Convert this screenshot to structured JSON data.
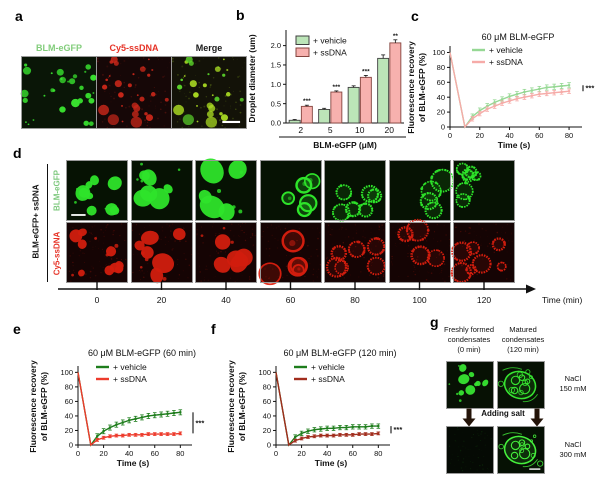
{
  "figure": {
    "panel_labels": {
      "a": "a",
      "b": "b",
      "c": "c",
      "d": "d",
      "e": "e",
      "f": "f",
      "g": "g"
    }
  },
  "panel_a": {
    "captions": [
      {
        "text": "BLM-eGFP",
        "color": "#82cd7b"
      },
      {
        "text": "Cy5-ssDNA",
        "color": "#e63226"
      },
      {
        "text": "Merge",
        "color": "#1a1a1a"
      }
    ]
  },
  "panel_d": {
    "group_label": "BLM-eGFP+ ssDNA",
    "row_labels": [
      {
        "text": "BLM-eGFP",
        "color": "#7dc87d"
      },
      {
        "text": "Cy5-ssDNA",
        "color": "#e63226"
      }
    ],
    "time_axis": {
      "ticks": [
        "0",
        "20",
        "40",
        "60",
        "80",
        "100",
        "120"
      ],
      "label": "Time (min)"
    }
  },
  "panel_g": {
    "col_headers": [
      [
        "Freshly formed",
        "condensates",
        "(0 min)"
      ],
      [
        "Matured",
        "condensates",
        "(120 min)"
      ]
    ],
    "arrow_label": "Adding salt",
    "row_labels": [
      [
        "NaCl",
        "150 mM"
      ],
      [
        "NaCl",
        "300 mM"
      ]
    ]
  },
  "chart_data": [
    {
      "panel": "b",
      "type": "bar",
      "title": "",
      "ylabel": "Droplet diameter (um)",
      "xlabel": "BLM-eGFP (μM)",
      "categories": [
        "2",
        "5",
        "10",
        "20"
      ],
      "yticks": [
        0,
        0.5,
        1,
        1.5,
        2
      ],
      "ytick_labels": [
        "0.0",
        "0.5",
        "1.0",
        "1.5",
        "2.0"
      ],
      "ylim": [
        0,
        2.3
      ],
      "grid": false,
      "legend_pos": "top-left",
      "series": [
        {
          "name": "+ vehicle",
          "fill": "#bce5b8",
          "edge": "#3f3f3f",
          "values": [
            0.07,
            0.35,
            0.92,
            1.67
          ],
          "errors": [
            0.02,
            0.03,
            0.04,
            0.09
          ]
        },
        {
          "name": "+ ssDNA",
          "fill": "#f7b1ae",
          "edge": "#84443e",
          "values": [
            0.43,
            0.8,
            1.18,
            2.07
          ],
          "errors": [
            0.03,
            0.03,
            0.05,
            0.08
          ]
        }
      ],
      "significance": [
        "***",
        "***",
        "***",
        "**"
      ]
    },
    {
      "panel": "c",
      "type": "line",
      "title": "60 μM BLM-eGFP",
      "ylabel_lines": [
        "Fluorescence recovery",
        "of BLM-eGFP (%)"
      ],
      "xlabel": "Time (s)",
      "xticks": [
        0,
        20,
        40,
        60,
        80
      ],
      "yticks": [
        0,
        20,
        40,
        60,
        80,
        100
      ],
      "xlim": [
        0,
        86
      ],
      "ylim": [
        0,
        106
      ],
      "grid": false,
      "legend_pos": "top-left",
      "significance": "***",
      "x": [
        0,
        10,
        15,
        20,
        25,
        30,
        35,
        40,
        45,
        50,
        55,
        60,
        65,
        70,
        75,
        80
      ],
      "series": [
        {
          "name": "+ vehicle",
          "color": "#96d894",
          "y": [
            100,
            0,
            14,
            22,
            28,
            33,
            37,
            41,
            44,
            47,
            49,
            51,
            53,
            54,
            55,
            56
          ],
          "err": 3.5
        },
        {
          "name": "+ ssDNA",
          "color": "#f6aba8",
          "y": [
            100,
            0,
            11,
            18,
            24,
            28,
            32,
            35,
            38,
            40,
            42,
            44,
            45,
            46,
            47,
            48
          ],
          "err": 3
        }
      ]
    },
    {
      "panel": "e",
      "type": "line",
      "title": "60 μM BLM-eGFP (60 min)",
      "ylabel_lines": [
        "Fluorescence recovery",
        "of BLM-eGFP (%)"
      ],
      "xlabel": "Time (s)",
      "xticks": [
        0,
        20,
        40,
        60,
        80
      ],
      "yticks": [
        0,
        20,
        40,
        60,
        80,
        100
      ],
      "xlim": [
        0,
        86
      ],
      "ylim": [
        0,
        106
      ],
      "grid": false,
      "legend_pos": "top-left",
      "significance": "***",
      "x": [
        0,
        10,
        15,
        20,
        25,
        30,
        35,
        40,
        45,
        50,
        55,
        60,
        65,
        70,
        75,
        80
      ],
      "series": [
        {
          "name": "+ vehicle",
          "color": "#1e7d1c",
          "y": [
            100,
            0,
            12,
            19,
            24,
            28,
            31,
            34,
            36,
            38,
            40,
            41,
            42,
            43,
            44,
            45
          ],
          "err": 3.5
        },
        {
          "name": "+ ssDNA",
          "color": "#ed3b2c",
          "y": [
            100,
            0,
            7,
            10,
            12,
            13,
            13,
            14,
            14,
            14,
            15,
            15,
            15,
            15,
            15,
            16
          ],
          "err": 2
        }
      ]
    },
    {
      "panel": "f",
      "type": "line",
      "title": "60 μM BLM-eGFP (120 min)",
      "ylabel_lines": [
        "Fluorescence recovery",
        "of BLM-eGFP (%)"
      ],
      "xlabel": "Time (s)",
      "xticks": [
        0,
        20,
        40,
        60,
        80
      ],
      "yticks": [
        0,
        20,
        40,
        60,
        80,
        100
      ],
      "xlim": [
        0,
        86
      ],
      "ylim": [
        0,
        106
      ],
      "grid": false,
      "legend_pos": "top-left",
      "significance": "***",
      "x": [
        0,
        10,
        15,
        20,
        25,
        30,
        35,
        40,
        45,
        50,
        55,
        60,
        65,
        70,
        75,
        80
      ],
      "series": [
        {
          "name": "+ vehicle",
          "color": "#1e7d1c",
          "y": [
            100,
            0,
            11,
            16,
            19,
            21,
            22,
            23,
            23,
            24,
            24,
            25,
            25,
            25,
            26,
            26
          ],
          "err": 3
        },
        {
          "name": "+ ssDNA",
          "color": "#a12d1d",
          "y": [
            100,
            0,
            6,
            9,
            11,
            12,
            13,
            13,
            13,
            14,
            14,
            14,
            15,
            15,
            15,
            16
          ],
          "err": 2
        }
      ]
    }
  ],
  "micrographs": {
    "a_green": {
      "style": "dots",
      "color": "#38df2e",
      "bg": "#0a1607",
      "seed": 7
    },
    "a_red": {
      "style": "dots",
      "color": "#df2b1c",
      "bg": "#160707",
      "seed": 7,
      "noise": true,
      "dim": 0.88
    },
    "a_merge": {
      "style": "dots",
      "color": "#a8d822",
      "color2": "#5ad22a",
      "bg": "#131208",
      "seed": 7,
      "noise": true,
      "scalebar": "br"
    },
    "d0_g": {
      "style": "blobs",
      "n": 9,
      "rmin": 5,
      "rmax": 13,
      "color": "#2ee42a",
      "bg": "#061203",
      "seed": 21,
      "scalebar": "bl"
    },
    "d1_g": {
      "style": "blobs",
      "n": 6,
      "rmin": 8,
      "rmax": 18,
      "color": "#2ee42a",
      "bg": "#061203",
      "seed": 22
    },
    "d2_g": {
      "style": "blobs",
      "n": 5,
      "rmin": 11,
      "rmax": 22,
      "color": "#2ee42a",
      "bg": "#061203",
      "seed": 23
    },
    "d3_g": {
      "style": "rings",
      "n": 5,
      "rmin": 9,
      "rmax": 19,
      "color": "#2ee42a",
      "bg": "#061203",
      "seed": 24
    },
    "d4_g": {
      "style": "ragged",
      "n": 6,
      "rmin": 8,
      "rmax": 17,
      "color": "#2ee42a",
      "bg": "#061203",
      "seed": 25
    },
    "d5_g": {
      "style": "ragged",
      "n": 4,
      "rmin": 11,
      "rmax": 21,
      "color": "#2ee42a",
      "bg": "#061203",
      "seed": 26
    },
    "d6_g": {
      "style": "ragged",
      "n": 7,
      "rmin": 5,
      "rmax": 16,
      "color": "#2ee42a",
      "bg": "#061203",
      "seed": 27
    },
    "d0_r": {
      "style": "blobs",
      "n": 9,
      "rmin": 5,
      "rmax": 13,
      "color": "#e2200f",
      "bg": "#150404",
      "seed": 21,
      "noise": true,
      "dim": 0.92
    },
    "d1_r": {
      "style": "blobs",
      "n": 6,
      "rmin": 8,
      "rmax": 18,
      "color": "#e2200f",
      "bg": "#150404",
      "seed": 22,
      "noise": true,
      "dim": 0.92
    },
    "d2_r": {
      "style": "blobs",
      "n": 5,
      "rmin": 11,
      "rmax": 22,
      "color": "#e2200f",
      "bg": "#150404",
      "seed": 23,
      "noise": true,
      "dim": 0.92
    },
    "d3_r": {
      "style": "rings",
      "n": 5,
      "rmin": 9,
      "rmax": 19,
      "color": "#e2200f",
      "bg": "#150404",
      "seed": 24,
      "noise": true,
      "dim": 0.92
    },
    "d4_r": {
      "style": "ragged",
      "n": 6,
      "rmin": 8,
      "rmax": 17,
      "color": "#e2200f",
      "bg": "#150404",
      "seed": 25,
      "noise": true,
      "dim": 0.92
    },
    "d5_r": {
      "style": "ragged",
      "n": 4,
      "rmin": 11,
      "rmax": 21,
      "color": "#e2200f",
      "bg": "#150404",
      "seed": 26,
      "noise": true,
      "dim": 0.92
    },
    "d6_r": {
      "style": "ragged",
      "n": 7,
      "rmin": 5,
      "rmax": 16,
      "color": "#e2200f",
      "bg": "#150404",
      "seed": 27,
      "noise": true,
      "dim": 0.92
    },
    "g_fresh_150": {
      "style": "blobs",
      "n": 8,
      "rmin": 4,
      "rmax": 12,
      "color": "#37e431",
      "bg": "#071104",
      "seed": 41
    },
    "g_mature_150": {
      "style": "network",
      "color": "#37e431",
      "bg": "#071104",
      "seed": 42
    },
    "g_fresh_300": {
      "style": "empty",
      "color": "#37e431",
      "bg": "#050a04",
      "seed": 43
    },
    "g_mature_300": {
      "style": "network",
      "color": "#45f03c",
      "bg": "#061104",
      "seed": 44,
      "scalebar": "br"
    }
  }
}
